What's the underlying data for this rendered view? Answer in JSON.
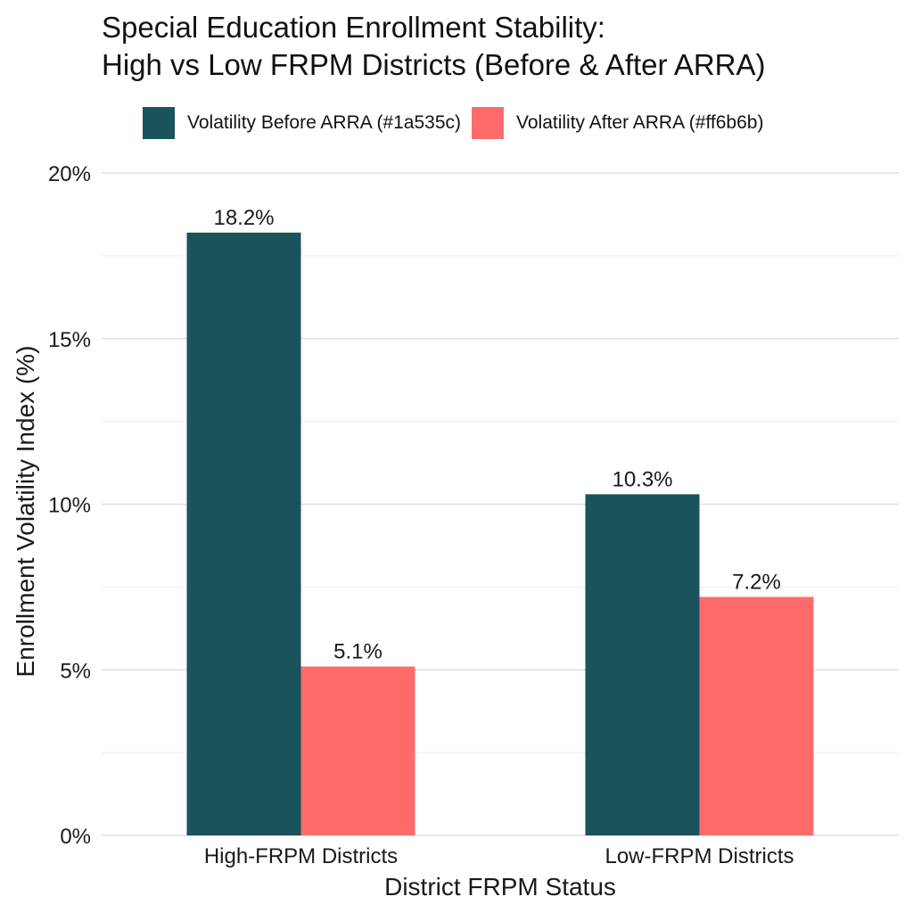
{
  "chart_data": {
    "type": "bar",
    "title": [
      "Special Education Enrollment Stability:",
      "High vs Low FRPM Districts (Before & After ARRA)"
    ],
    "xlabel": "District FRPM Status",
    "ylabel": "Enrollment Volatility Index (%)",
    "categories": [
      "High-FRPM Districts",
      "Low-FRPM Districts"
    ],
    "series": [
      {
        "name": "Volatility Before ARRA (#1a535c)",
        "color": "#1a535c",
        "values": [
          18.2,
          10.3
        ],
        "labels": [
          "18.2%",
          "10.3%"
        ]
      },
      {
        "name": "Volatility After ARRA (#ff6b6b)",
        "color": "#ff6b6b",
        "values": [
          5.1,
          7.2
        ],
        "labels": [
          "5.1%",
          "7.2%"
        ]
      }
    ],
    "ylim": [
      0,
      20
    ],
    "yticks": [
      0,
      5,
      10,
      15,
      20
    ],
    "ytick_labels": [
      "0%",
      "5%",
      "10%",
      "15%",
      "20%"
    ],
    "grid": true,
    "legend_position": "top"
  }
}
